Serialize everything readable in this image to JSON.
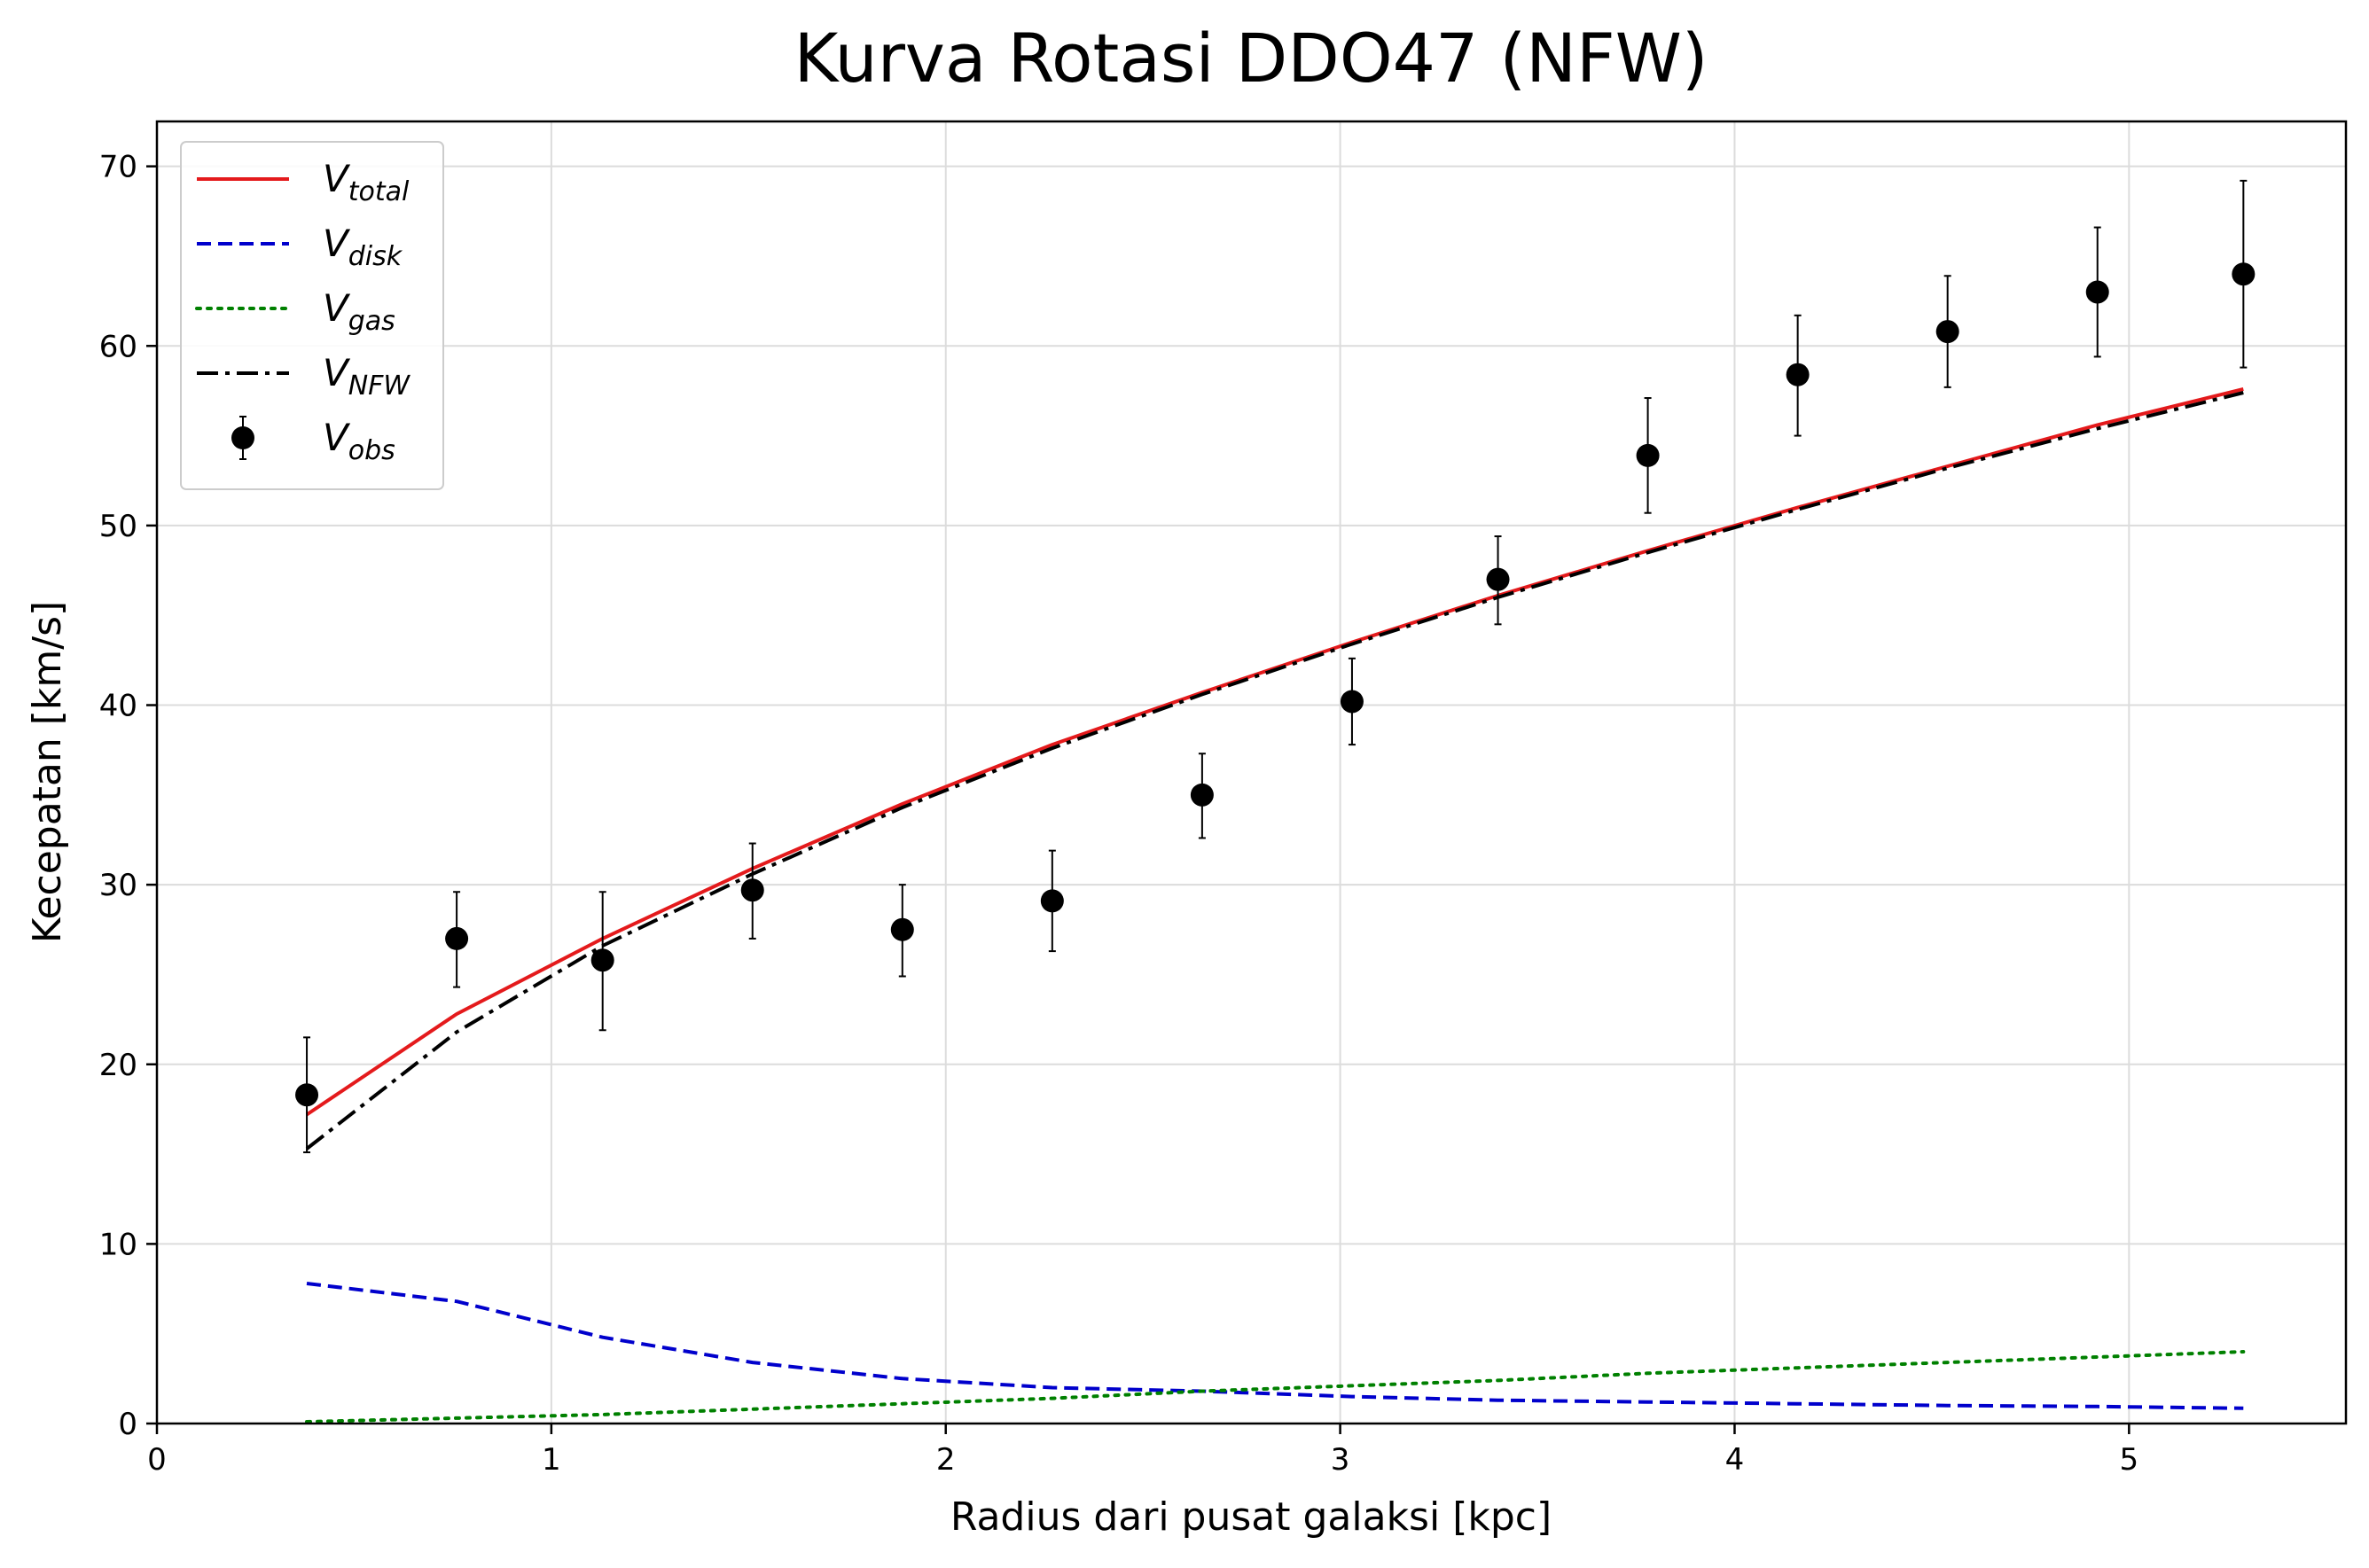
{
  "chart_data": {
    "type": "line",
    "title": "Kurva Rotasi DDO47 (NFW)",
    "xlabel": "Radius dari pusat galaksi [kpc]",
    "ylabel": "Kecepatan [km/s]",
    "xlim": [
      0,
      5.55
    ],
    "ylim": [
      0,
      72.5
    ],
    "xticks": [
      0,
      1,
      2,
      3,
      4,
      5
    ],
    "yticks": [
      0,
      10,
      20,
      30,
      40,
      50,
      60,
      70
    ],
    "grid": true,
    "legend_position": "top-left",
    "x": [
      0.38,
      0.76,
      1.13,
      1.51,
      1.89,
      2.27,
      2.65,
      3.03,
      3.4,
      3.78,
      4.16,
      4.54,
      4.92,
      5.29
    ],
    "series": [
      {
        "name": "V",
        "sub": "total",
        "style": "solid",
        "color": "#e41a1c",
        "values": [
          17.2,
          22.8,
          27.0,
          30.9,
          34.5,
          37.8,
          40.7,
          43.5,
          46.1,
          48.6,
          51.0,
          53.3,
          55.6,
          57.6
        ]
      },
      {
        "name": "V",
        "sub": "disk",
        "style": "dashed",
        "color": "#0000cc",
        "values": [
          7.8,
          6.8,
          4.8,
          3.4,
          2.5,
          2.0,
          1.8,
          1.5,
          1.3,
          1.2,
          1.1,
          1.0,
          0.95,
          0.85
        ]
      },
      {
        "name": "V",
        "sub": "gas",
        "style": "dotted",
        "color": "#008000",
        "values": [
          0.1,
          0.3,
          0.5,
          0.8,
          1.1,
          1.4,
          1.8,
          2.1,
          2.4,
          2.8,
          3.1,
          3.4,
          3.7,
          4.0
        ]
      },
      {
        "name": "V",
        "sub": "NFW",
        "style": "dashdot",
        "color": "#000000",
        "values": [
          15.3,
          21.8,
          26.6,
          30.6,
          34.3,
          37.6,
          40.6,
          43.4,
          46.0,
          48.5,
          50.9,
          53.2,
          55.4,
          57.4
        ]
      }
    ],
    "observed": {
      "name": "V",
      "sub": "obs",
      "color": "#000000",
      "values": [
        18.3,
        27.0,
        25.8,
        29.7,
        27.5,
        29.1,
        35.0,
        40.2,
        47.0,
        53.9,
        58.4,
        60.8,
        63.0,
        64.0
      ],
      "err_low": [
        3.2,
        2.7,
        3.9,
        2.7,
        2.6,
        2.8,
        2.4,
        2.4,
        2.5,
        3.2,
        3.4,
        3.1,
        3.6,
        5.2
      ],
      "err_high": [
        3.2,
        2.6,
        3.8,
        2.6,
        2.5,
        2.8,
        2.3,
        2.4,
        2.4,
        3.2,
        3.3,
        3.1,
        3.6,
        5.2
      ]
    }
  }
}
